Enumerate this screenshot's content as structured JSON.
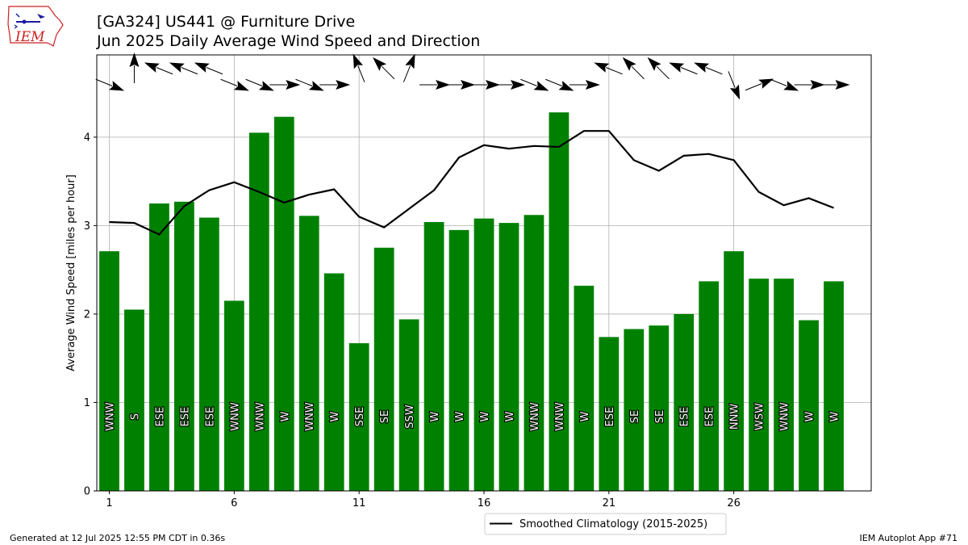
{
  "header": {
    "title_line1": "[GA324] US441 @ Furniture Drive",
    "title_line2": "Jun 2025 Daily Average Wind Speed and Direction"
  },
  "logo": {
    "text": "IEM"
  },
  "footer": {
    "left": "Generated at 12 Jul 2025 12:55 PM CDT in 0.36s",
    "right": "IEM Autoplot App #71"
  },
  "colors": {
    "bar": "#008000",
    "line": "#000000",
    "grid": "#b0b0b0",
    "logo_red": "#cc2222",
    "logo_blue": "#1a1aa0"
  },
  "chart_data": {
    "type": "bar",
    "ylabel": "Average Wind Speed [miles per hour]",
    "xlim": [
      0.5,
      31.5
    ],
    "ylim": [
      0,
      4.93
    ],
    "xticks": [
      1,
      6,
      11,
      16,
      21,
      26
    ],
    "yticks": [
      0,
      1,
      2,
      3,
      4
    ],
    "grid": true,
    "x": [
      1,
      2,
      3,
      4,
      5,
      6,
      7,
      8,
      9,
      10,
      11,
      12,
      13,
      14,
      15,
      16,
      17,
      18,
      19,
      20,
      21,
      22,
      23,
      24,
      25,
      26,
      27,
      28,
      29,
      30
    ],
    "values": [
      2.71,
      2.05,
      3.25,
      3.27,
      3.09,
      2.15,
      4.05,
      4.23,
      3.11,
      2.46,
      1.67,
      2.75,
      1.94,
      3.04,
      2.95,
      3.08,
      3.03,
      3.12,
      4.28,
      2.32,
      1.74,
      1.83,
      1.87,
      2.0,
      2.37,
      2.71,
      2.4,
      2.4,
      1.93,
      2.37
    ],
    "direction_labels": [
      "WNW",
      "S",
      "ESE",
      "ESE",
      "ESE",
      "WNW",
      "WNW",
      "W",
      "WNW",
      "W",
      "SSE",
      "SE",
      "SSW",
      "W",
      "W",
      "W",
      "W",
      "WNW",
      "WNW",
      "W",
      "ESE",
      "SE",
      "SE",
      "ESE",
      "ESE",
      "NNW",
      "WSW",
      "WNW",
      "W",
      "W"
    ],
    "arrow_directions_deg": [
      292,
      180,
      112,
      112,
      112,
      292,
      292,
      270,
      292,
      270,
      158,
      135,
      202,
      270,
      270,
      270,
      270,
      292,
      292,
      270,
      112,
      135,
      135,
      112,
      112,
      338,
      248,
      292,
      270,
      270
    ],
    "arrow_rows": [
      "low",
      "high",
      "high",
      "high",
      "high",
      "low",
      "low",
      "low",
      "low",
      "low",
      "high",
      "high",
      "high",
      "low",
      "low",
      "low",
      "low",
      "low",
      "low",
      "low",
      "high",
      "high",
      "high",
      "high",
      "high",
      "low",
      "low",
      "low",
      "low",
      "low"
    ],
    "series": [
      {
        "name": "Smoothed Climatology (2015-2025)",
        "type": "line",
        "values": [
          3.04,
          3.03,
          2.9,
          3.22,
          3.4,
          3.49,
          3.38,
          3.26,
          3.35,
          3.41,
          3.1,
          2.98,
          3.19,
          3.4,
          3.77,
          3.91,
          3.87,
          3.9,
          3.89,
          4.07,
          4.07,
          3.74,
          3.62,
          3.79,
          3.81,
          3.74,
          3.38,
          3.23,
          3.31,
          3.2
        ]
      }
    ]
  }
}
